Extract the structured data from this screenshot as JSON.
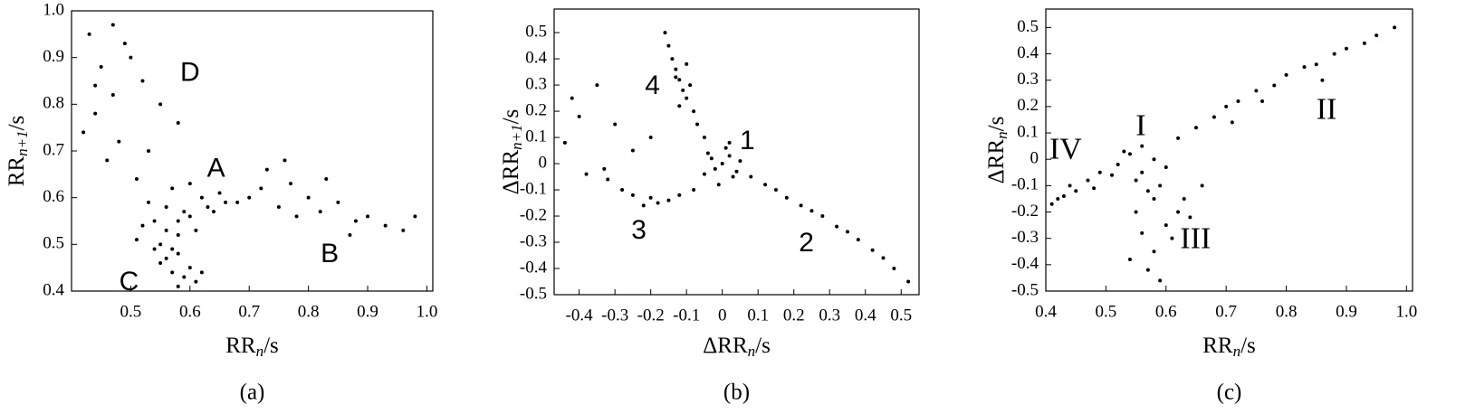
{
  "chart_data": [
    {
      "type": "scatter",
      "caption": "(a)",
      "xlabel": [
        "RR",
        "n",
        "/s"
      ],
      "ylabel": [
        "RR",
        "n+1",
        "/s"
      ],
      "xlim": [
        0.4,
        1.01
      ],
      "ylim": [
        0.4,
        1.0
      ],
      "xticks": [
        0.5,
        0.6,
        0.7,
        0.8,
        0.9,
        {
          "value": 1,
          "label": "1.0"
        }
      ],
      "yticks": [
        0.4,
        0.5,
        0.6,
        0.7,
        0.8,
        0.9,
        {
          "value": 1,
          "label": "1.0"
        }
      ],
      "annotations": [
        {
          "text": "A",
          "x": 0.644,
          "y": 0.66
        },
        {
          "text": "B",
          "x": 0.836,
          "y": 0.477
        },
        {
          "text": "C",
          "x": 0.497,
          "y": 0.417
        },
        {
          "text": "D",
          "x": 0.6,
          "y": 0.865
        }
      ],
      "color": "#000000",
      "x": [
        0.43,
        0.45,
        0.47,
        0.44,
        0.5,
        0.52,
        0.48,
        0.46,
        0.55,
        0.58,
        0.42,
        0.49,
        0.53,
        0.51,
        0.47,
        0.44,
        0.54,
        0.56,
        0.58,
        0.6,
        0.62,
        0.55,
        0.57,
        0.59,
        0.61,
        0.63,
        0.52,
        0.65,
        0.53,
        0.57,
        0.6,
        0.58,
        0.56,
        0.64,
        0.51,
        0.66,
        0.7,
        0.72,
        0.75,
        0.77,
        0.8,
        0.82,
        0.85,
        0.88,
        0.9,
        0.93,
        0.96,
        0.73,
        0.78,
        0.83,
        0.87,
        0.68,
        0.76,
        0.98,
        0.55,
        0.57,
        0.58,
        0.59,
        0.6,
        0.56,
        0.61,
        0.58,
        0.54,
        0.62
      ],
      "y": [
        0.95,
        0.88,
        0.82,
        0.78,
        0.9,
        0.85,
        0.72,
        0.68,
        0.8,
        0.76,
        0.74,
        0.93,
        0.7,
        0.64,
        0.97,
        0.84,
        0.55,
        0.58,
        0.52,
        0.56,
        0.6,
        0.5,
        0.62,
        0.57,
        0.53,
        0.58,
        0.54,
        0.61,
        0.59,
        0.49,
        0.63,
        0.55,
        0.53,
        0.57,
        0.51,
        0.59,
        0.6,
        0.62,
        0.58,
        0.63,
        0.6,
        0.57,
        0.59,
        0.55,
        0.56,
        0.54,
        0.53,
        0.66,
        0.56,
        0.64,
        0.52,
        0.59,
        0.68,
        0.56,
        0.46,
        0.44,
        0.48,
        0.43,
        0.45,
        0.47,
        0.42,
        0.41,
        0.49,
        0.44
      ]
    },
    {
      "type": "scatter",
      "caption": "(b)",
      "xlabel": [
        "ΔRR",
        "n",
        "/s"
      ],
      "ylabel": [
        "ΔRR",
        "n+1",
        "/s"
      ],
      "xlim": [
        -0.47,
        0.55
      ],
      "ylim": [
        -0.5,
        0.59
      ],
      "xticks": [
        -0.4,
        -0.3,
        -0.2,
        -0.1,
        0,
        0.1,
        0.2,
        0.3,
        0.4,
        0.5
      ],
      "yticks": [
        -0.5,
        -0.4,
        -0.3,
        -0.2,
        -0.1,
        0,
        0.1,
        0.2,
        0.3,
        0.4,
        0.5
      ],
      "annotations": [
        {
          "text": "1",
          "x": 0.07,
          "y": 0.083
        },
        {
          "text": "2",
          "x": 0.235,
          "y": -0.307
        },
        {
          "text": "3",
          "x": -0.233,
          "y": -0.259
        },
        {
          "text": "4",
          "x": -0.195,
          "y": 0.293
        }
      ],
      "color": "#000000",
      "x": [
        0,
        0.02,
        -0.02,
        0.03,
        -0.04,
        0.01,
        0.05,
        -0.01,
        0.04,
        -0.05,
        0.02,
        -0.03,
        -0.05,
        -0.07,
        -0.08,
        -0.1,
        -0.11,
        -0.12,
        -0.13,
        -0.14,
        -0.09,
        -0.15,
        -0.12,
        -0.1,
        -0.16,
        -0.13,
        0.08,
        0.12,
        0.15,
        0.18,
        0.22,
        0.25,
        0.28,
        0.32,
        0.35,
        0.38,
        0.42,
        0.45,
        0.48,
        0.52,
        -0.08,
        -0.12,
        -0.15,
        -0.18,
        -0.2,
        -0.22,
        -0.25,
        -0.28,
        -0.32,
        -0.38,
        -0.42,
        -0.35,
        -0.3,
        -0.4,
        -0.25,
        -0.2,
        -0.44,
        -0.33
      ],
      "y": [
        0,
        0.03,
        -0.02,
        -0.05,
        0.04,
        0.06,
        0.01,
        -0.08,
        -0.03,
        -0.04,
        0.08,
        0.02,
        0.1,
        0.15,
        0.2,
        0.25,
        0.28,
        0.32,
        0.36,
        0.4,
        0.3,
        0.45,
        0.22,
        0.38,
        0.5,
        0.33,
        -0.05,
        -0.08,
        -0.1,
        -0.13,
        -0.16,
        -0.18,
        -0.2,
        -0.24,
        -0.26,
        -0.29,
        -0.33,
        -0.36,
        -0.4,
        -0.45,
        -0.1,
        -0.12,
        -0.14,
        -0.15,
        -0.13,
        -0.16,
        -0.12,
        -0.1,
        -0.06,
        -0.04,
        0.25,
        0.3,
        0.15,
        0.18,
        0.05,
        0.1,
        0.08,
        -0.02
      ]
    },
    {
      "type": "scatter",
      "caption": "(c)",
      "xlabel": [
        "RR",
        "n",
        "/s"
      ],
      "ylabel": [
        "ΔRR",
        "n",
        "/s"
      ],
      "xlim": [
        0.4,
        1.01
      ],
      "ylim": [
        -0.5,
        0.57
      ],
      "xticks": [
        0.4,
        0.5,
        0.6,
        0.7,
        0.8,
        0.9,
        {
          "value": 1,
          "label": "1.0"
        }
      ],
      "yticks": [
        -0.5,
        -0.4,
        -0.3,
        -0.2,
        -0.1,
        0,
        0.1,
        0.2,
        0.3,
        0.4,
        0.5
      ],
      "annotations": [
        {
          "text": "I",
          "x": 0.558,
          "y": 0.119
        },
        {
          "text": "II",
          "x": 0.867,
          "y": 0.18
        },
        {
          "text": "III",
          "x": 0.649,
          "y": -0.31
        },
        {
          "text": "IV",
          "x": 0.433,
          "y": 0.03
        }
      ],
      "color": "#000000",
      "x": [
        0.52,
        0.54,
        0.56,
        0.58,
        0.55,
        0.57,
        0.53,
        0.59,
        0.6,
        0.51,
        0.56,
        0.58,
        0.41,
        0.43,
        0.45,
        0.47,
        0.49,
        0.44,
        0.42,
        0.48,
        0.62,
        0.65,
        0.68,
        0.7,
        0.72,
        0.75,
        0.78,
        0.8,
        0.83,
        0.85,
        0.88,
        0.9,
        0.93,
        0.95,
        0.98,
        0.76,
        0.86,
        0.71,
        0.55,
        0.56,
        0.58,
        0.57,
        0.6,
        0.62,
        0.59,
        0.61,
        0.63,
        0.64,
        0.54,
        0.66
      ],
      "y": [
        -0.02,
        0.02,
        -0.05,
        0.0,
        -0.08,
        -0.12,
        0.03,
        -0.1,
        -0.03,
        -0.06,
        0.05,
        -0.15,
        -0.17,
        -0.14,
        -0.12,
        -0.08,
        -0.05,
        -0.1,
        -0.15,
        -0.11,
        0.08,
        0.12,
        0.16,
        0.2,
        0.22,
        0.26,
        0.28,
        0.32,
        0.35,
        0.36,
        0.4,
        0.42,
        0.44,
        0.47,
        0.5,
        0.22,
        0.3,
        0.14,
        -0.2,
        -0.28,
        -0.35,
        -0.42,
        -0.25,
        -0.2,
        -0.46,
        -0.3,
        -0.15,
        -0.22,
        -0.38,
        -0.1
      ]
    }
  ]
}
